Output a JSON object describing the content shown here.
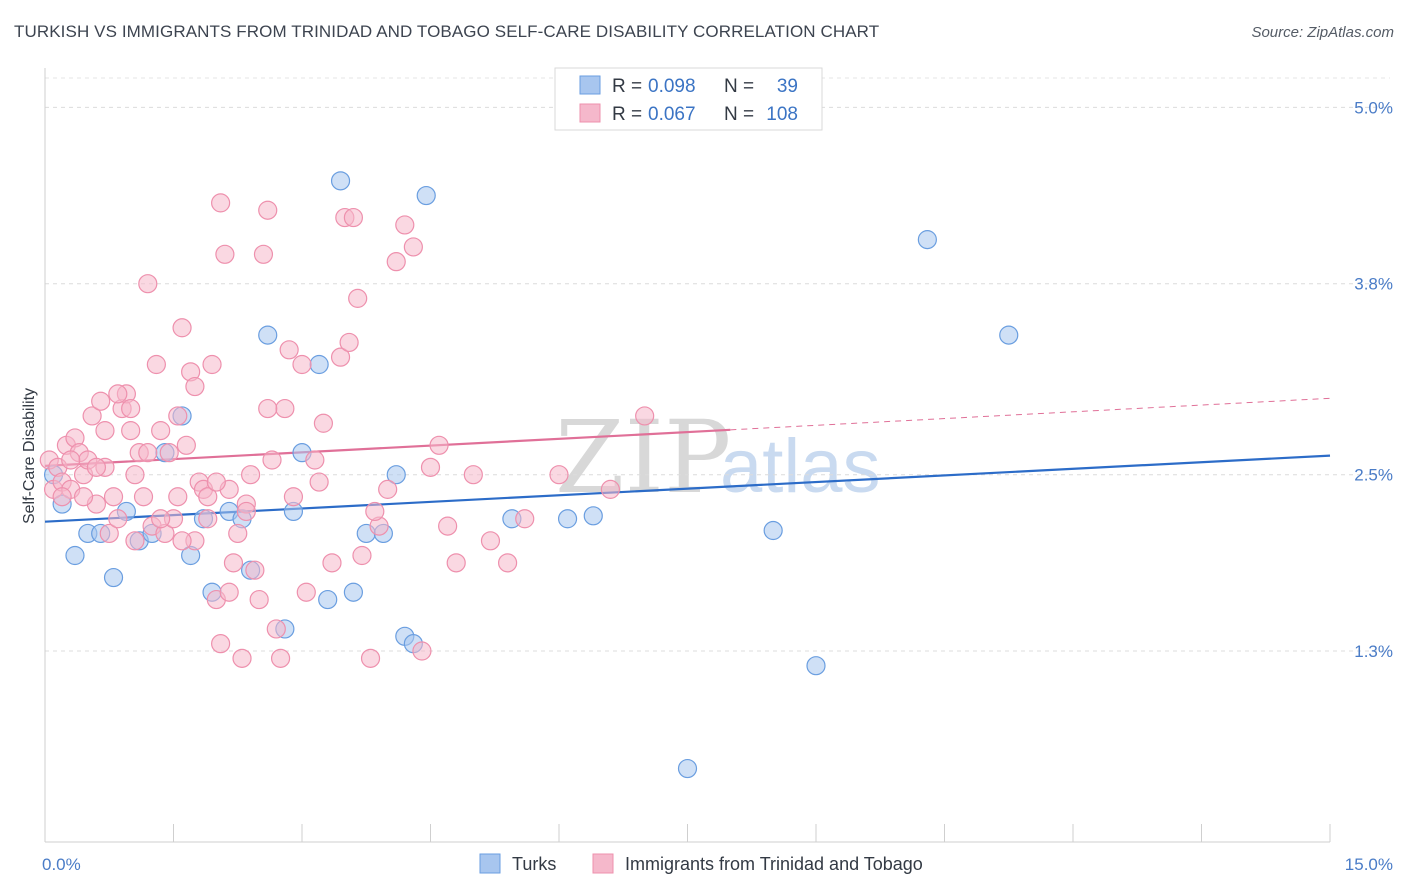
{
  "header": {
    "title": "TURKISH VS IMMIGRANTS FROM TRINIDAD AND TOBAGO SELF-CARE DISABILITY CORRELATION CHART",
    "source": "Source: ZipAtlas.com"
  },
  "watermark": {
    "part1": "ZIP",
    "part2": "atlas"
  },
  "legend": {
    "r_label": "R =",
    "n_label": "N =",
    "rows": [
      {
        "r": "0.098",
        "n": "39",
        "color": "#a8c6ef"
      },
      {
        "r": "0.067",
        "n": "108",
        "color": "#f5b8cb"
      }
    ]
  },
  "bottom_legend": [
    {
      "label": "Turks",
      "color": "#a8c6ef"
    },
    {
      "label": "Immigrants from Trinidad and Tobago",
      "color": "#f5b8cb"
    }
  ],
  "chart_data": {
    "type": "scatter",
    "title": "TURKISH VS IMMIGRANTS FROM TRINIDAD AND TOBAGO SELF-CARE DISABILITY CORRELATION CHART",
    "xlabel": "",
    "ylabel": "Self-Care Disability",
    "xlim": [
      0,
      15
    ],
    "ylim": [
      0,
      5.2
    ],
    "x_tick_labels": [
      "0.0%",
      "15.0%"
    ],
    "y_ticks": [
      1.3,
      2.5,
      3.8,
      5.0
    ],
    "y_tick_labels": [
      "1.3%",
      "2.5%",
      "3.8%",
      "5.0%"
    ],
    "grid": "horizontal dashed",
    "legend_position": "top-center",
    "series": [
      {
        "name": "Turks",
        "color": "#6a9ee0",
        "fill": "#a8c6ef",
        "trend": {
          "x": [
            0,
            15
          ],
          "y": [
            2.18,
            2.63
          ],
          "color": "#2c6cc8",
          "dashed_from": null
        },
        "points": [
          [
            0.1,
            2.5
          ],
          [
            0.2,
            2.3
          ],
          [
            0.35,
            1.95
          ],
          [
            0.5,
            2.1
          ],
          [
            0.65,
            2.1
          ],
          [
            0.8,
            1.8
          ],
          [
            0.95,
            2.25
          ],
          [
            1.1,
            2.05
          ],
          [
            1.25,
            2.1
          ],
          [
            1.4,
            2.65
          ],
          [
            1.6,
            2.9
          ],
          [
            1.7,
            1.95
          ],
          [
            1.85,
            2.2
          ],
          [
            1.95,
            1.7
          ],
          [
            2.15,
            2.25
          ],
          [
            2.3,
            2.2
          ],
          [
            2.4,
            1.85
          ],
          [
            2.6,
            3.45
          ],
          [
            2.8,
            1.45
          ],
          [
            2.9,
            2.25
          ],
          [
            3.0,
            2.65
          ],
          [
            3.2,
            3.25
          ],
          [
            3.3,
            1.65
          ],
          [
            3.45,
            4.5
          ],
          [
            3.6,
            1.7
          ],
          [
            3.75,
            2.1
          ],
          [
            3.95,
            2.1
          ],
          [
            4.1,
            2.5
          ],
          [
            4.2,
            1.4
          ],
          [
            4.3,
            1.35
          ],
          [
            4.45,
            4.4
          ],
          [
            5.45,
            2.2
          ],
          [
            6.1,
            2.2
          ],
          [
            6.4,
            2.22
          ],
          [
            7.5,
            0.5
          ],
          [
            8.5,
            2.12
          ],
          [
            9.0,
            1.2
          ],
          [
            10.3,
            4.1
          ],
          [
            11.25,
            3.45
          ]
        ]
      },
      {
        "name": "Immigrants from Trinidad and Tobago",
        "color": "#ee90ad",
        "fill": "#f5b8cb",
        "trend": {
          "x": [
            0,
            15
          ],
          "y": [
            2.56,
            3.02
          ],
          "color": "#e07098",
          "dashed_from": 8
        },
        "points": [
          [
            0.05,
            2.6
          ],
          [
            0.1,
            2.4
          ],
          [
            0.15,
            2.55
          ],
          [
            0.2,
            2.45
          ],
          [
            0.25,
            2.7
          ],
          [
            0.3,
            2.4
          ],
          [
            0.35,
            2.75
          ],
          [
            0.4,
            2.65
          ],
          [
            0.45,
            2.5
          ],
          [
            0.5,
            2.6
          ],
          [
            0.55,
            2.9
          ],
          [
            0.6,
            2.3
          ],
          [
            0.65,
            3.0
          ],
          [
            0.7,
            2.55
          ],
          [
            0.75,
            2.1
          ],
          [
            0.8,
            2.35
          ],
          [
            0.85,
            2.2
          ],
          [
            0.9,
            2.95
          ],
          [
            0.95,
            3.05
          ],
          [
            1.0,
            2.8
          ],
          [
            1.05,
            2.05
          ],
          [
            1.1,
            2.65
          ],
          [
            1.15,
            2.35
          ],
          [
            1.2,
            3.8
          ],
          [
            1.25,
            2.15
          ],
          [
            1.3,
            3.25
          ],
          [
            1.35,
            2.8
          ],
          [
            1.4,
            2.1
          ],
          [
            1.45,
            2.65
          ],
          [
            1.5,
            2.2
          ],
          [
            1.55,
            2.9
          ],
          [
            1.6,
            3.5
          ],
          [
            1.65,
            2.7
          ],
          [
            1.7,
            3.2
          ],
          [
            1.75,
            2.05
          ],
          [
            1.8,
            2.45
          ],
          [
            1.85,
            2.4
          ],
          [
            1.9,
            2.35
          ],
          [
            1.95,
            3.25
          ],
          [
            2.0,
            1.65
          ],
          [
            2.05,
            4.35
          ],
          [
            2.1,
            4.0
          ],
          [
            2.15,
            2.4
          ],
          [
            2.2,
            1.9
          ],
          [
            2.25,
            2.1
          ],
          [
            2.3,
            1.25
          ],
          [
            2.35,
            2.3
          ],
          [
            2.4,
            2.5
          ],
          [
            2.5,
            1.65
          ],
          [
            2.55,
            4.0
          ],
          [
            2.6,
            4.3
          ],
          [
            2.65,
            2.6
          ],
          [
            2.7,
            1.45
          ],
          [
            2.75,
            1.25
          ],
          [
            2.8,
            2.95
          ],
          [
            2.85,
            3.35
          ],
          [
            2.9,
            2.35
          ],
          [
            3.0,
            3.25
          ],
          [
            3.05,
            1.7
          ],
          [
            3.15,
            2.6
          ],
          [
            3.25,
            2.85
          ],
          [
            3.35,
            1.9
          ],
          [
            3.45,
            3.3
          ],
          [
            3.5,
            4.25
          ],
          [
            3.55,
            3.4
          ],
          [
            3.6,
            4.25
          ],
          [
            3.65,
            3.7
          ],
          [
            3.7,
            1.95
          ],
          [
            3.8,
            1.25
          ],
          [
            3.9,
            2.15
          ],
          [
            4.0,
            2.4
          ],
          [
            4.1,
            3.95
          ],
          [
            4.2,
            4.2
          ],
          [
            4.3,
            4.05
          ],
          [
            4.4,
            1.3
          ],
          [
            4.5,
            2.55
          ],
          [
            4.6,
            2.7
          ],
          [
            4.7,
            2.15
          ],
          [
            4.8,
            1.9
          ],
          [
            5.0,
            2.5
          ],
          [
            5.2,
            2.05
          ],
          [
            5.4,
            1.9
          ],
          [
            5.6,
            2.2
          ],
          [
            6.0,
            2.5
          ],
          [
            6.6,
            2.4
          ],
          [
            7.0,
            2.9
          ],
          [
            1.0,
            2.95
          ],
          [
            1.2,
            2.65
          ],
          [
            0.6,
            2.55
          ],
          [
            0.3,
            2.6
          ],
          [
            1.55,
            2.35
          ],
          [
            2.0,
            2.45
          ],
          [
            2.45,
            1.85
          ],
          [
            2.15,
            1.7
          ],
          [
            1.75,
            3.1
          ],
          [
            2.6,
            2.95
          ],
          [
            3.2,
            2.45
          ],
          [
            0.85,
            3.05
          ],
          [
            1.35,
            2.2
          ],
          [
            0.45,
            2.35
          ],
          [
            1.9,
            2.2
          ],
          [
            0.7,
            2.8
          ],
          [
            2.35,
            2.25
          ],
          [
            3.85,
            2.25
          ],
          [
            1.05,
            2.5
          ],
          [
            0.2,
            2.35
          ],
          [
            1.6,
            2.05
          ],
          [
            2.05,
            1.35
          ]
        ]
      }
    ]
  }
}
